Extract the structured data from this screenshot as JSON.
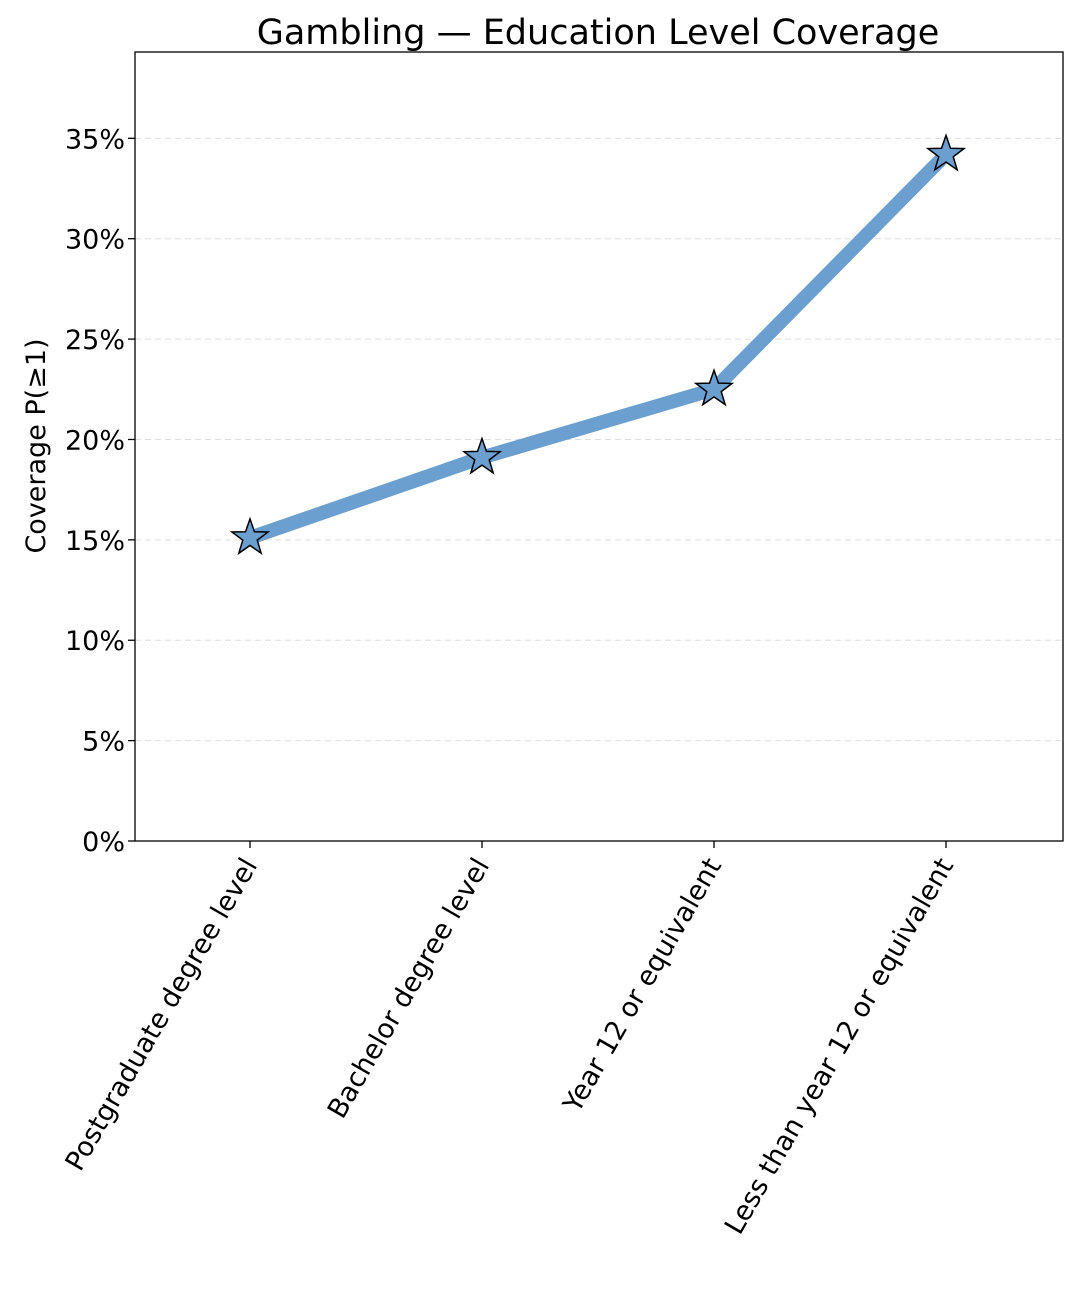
{
  "chart_data": {
    "type": "line",
    "title": "Gambling — Education Level Coverage",
    "xlabel": "",
    "ylabel": "Coverage P(≥1)",
    "categories": [
      "Postgraduate degree level",
      "Bachelor degree level",
      "Year 12 or equivalent",
      "Less than year 12 or equivalent"
    ],
    "series": [
      {
        "values": [
          15.1,
          19.1,
          22.5,
          34.2
        ],
        "color": "#6a9fcf",
        "marker": "star-icon"
      }
    ],
    "y_ticks": [
      0,
      5,
      10,
      15,
      20,
      25,
      30,
      35
    ],
    "y_tick_labels": [
      "0%",
      "5%",
      "10%",
      "15%",
      "20%",
      "25%",
      "30%",
      "35%"
    ],
    "ylim": [
      0,
      39.3
    ],
    "grid": "horizontal-dashed",
    "legend": "none"
  }
}
